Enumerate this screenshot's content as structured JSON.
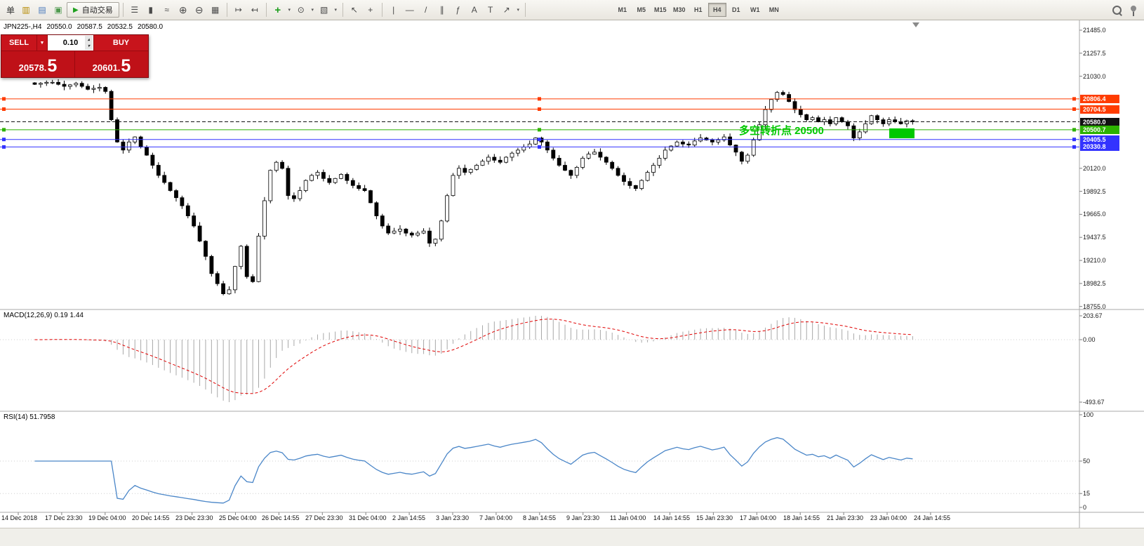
{
  "toolbar": {
    "new_order_label": "单",
    "autotrading_label": "自动交易",
    "timeframes": [
      "M1",
      "M5",
      "M15",
      "M30",
      "H1",
      "H4",
      "D1",
      "W1",
      "MN"
    ],
    "active_timeframe": "H4"
  },
  "icons": {
    "play": "▶",
    "charts": "▥",
    "profiles": "▤",
    "terminal": "▣",
    "bar_chart": "☰",
    "candlestick": "▮",
    "line_chart": "≈",
    "zoom_in": "⊕",
    "zoom_out": "⊖",
    "tile_windows": "▦",
    "auto_scroll": "↦",
    "chart_shift": "↤",
    "indicators_add": "+",
    "periods": "⊙",
    "templates": "▧",
    "cursor": "↖",
    "crosshair": "+",
    "vertical_line": "|",
    "horizontal_line": "—",
    "trendline": "/",
    "channel": "∥",
    "fibonacci": "ƒ",
    "text": "A",
    "text_label": "T",
    "arrows": "↗",
    "dropdown": "▾",
    "spin_up": "▴",
    "spin_down": "▾",
    "sell_dd": "▼"
  },
  "symbol_bar": {
    "symbol": "JPN225-,H4",
    "open": "20550.0",
    "high": "20587.5",
    "low": "20532.5",
    "close": "20580.0"
  },
  "trade_panel": {
    "sell_label": "SELL",
    "buy_label": "BUY",
    "volume": "0.10",
    "sell_price_main": "20578.",
    "sell_price_big": "5",
    "buy_price_main": "20601.",
    "buy_price_big": "5"
  },
  "annotation": {
    "text": "多空转折点 20500"
  },
  "colors": {
    "candle_up": "#ffffff",
    "candle_down": "#000000",
    "candle_outline": "#000000",
    "macd_signal": "#e00000",
    "macd_histogram": "#a8a8a8",
    "rsi_line": "#4a86c8",
    "annotation_green": "#00c800",
    "panel_red": "#bf1118",
    "separator": "#a8a8a8"
  },
  "chart_data": {
    "type": "candlestick",
    "symbol": "JPN225-",
    "timeframe": "H4",
    "window_ohlc": {
      "open": 20550.0,
      "high": 20587.5,
      "low": 20532.5,
      "close": 20580.0
    },
    "y_axis": {
      "ticks": [
        "21485.0",
        "21257.5",
        "21030.0",
        "20120.0",
        "19892.5",
        "19665.0",
        "19437.5",
        "19210.0",
        "18982.5",
        "18755.0"
      ],
      "range": [
        18755.0,
        21485.0
      ]
    },
    "x_axis": {
      "ticks": [
        "14 Dec 2018",
        "17 Dec 23:30",
        "19 Dec 04:00",
        "20 Dec 14:55",
        "23 Dec 23:30",
        "25 Dec 04:00",
        "26 Dec 14:55",
        "27 Dec 23:30",
        "31 Dec 04:00",
        "2 Jan 14:55",
        "3 Jan 23:30",
        "7 Jan 04:00",
        "8 Jan 14:55",
        "9 Jan 23:30",
        "11 Jan 04:00",
        "14 Jan 14:55",
        "15 Jan 23:30",
        "17 Jan 04:00",
        "18 Jan 14:55",
        "21 Jan 23:30",
        "23 Jan 04:00",
        "24 Jan 14:55"
      ]
    },
    "closes": [
      20950,
      20960,
      20970,
      20970,
      20950,
      20930,
      20945,
      20960,
      20930,
      20900,
      20910,
      20920,
      20880,
      20600,
      20380,
      20300,
      20380,
      20430,
      20330,
      20250,
      20150,
      20050,
      19980,
      19900,
      19830,
      19750,
      19650,
      19550,
      19400,
      19250,
      19080,
      18980,
      18880,
      18920,
      19150,
      19350,
      19050,
      19000,
      19450,
      19800,
      20100,
      20180,
      20120,
      19850,
      19820,
      19900,
      20000,
      20050,
      20080,
      20020,
      19980,
      20020,
      20060,
      20000,
      19950,
      19920,
      19900,
      19780,
      19650,
      19550,
      19480,
      19500,
      19520,
      19480,
      19460,
      19480,
      19500,
      19380,
      19420,
      19600,
      19850,
      20050,
      20120,
      20080,
      20110,
      20150,
      20190,
      20230,
      20200,
      20180,
      20230,
      20270,
      20300,
      20330,
      20360,
      20420,
      20380,
      20300,
      20220,
      20150,
      20100,
      20050,
      20130,
      20220,
      20260,
      20280,
      20230,
      20180,
      20120,
      20050,
      19990,
      19950,
      19920,
      20000,
      20080,
      20150,
      20220,
      20300,
      20340,
      20380,
      20360,
      20350,
      20390,
      20420,
      20400,
      20380,
      20400,
      20430,
      20350,
      20280,
      20190,
      20250,
      20400,
      20550,
      20700,
      20800,
      20870,
      20850,
      20780,
      20700,
      20650,
      20600,
      20620,
      20580,
      20600,
      20560,
      20620,
      20580,
      20540,
      20420,
      20480,
      20560,
      20640,
      20600,
      20560,
      20600,
      20580,
      20560,
      20590,
      20580
    ],
    "price_lines": [
      {
        "label": "20806.4",
        "price": 20806.4,
        "color": "#ff3c00",
        "style": "solid",
        "selected": true,
        "is_current": false
      },
      {
        "label": "20704.5",
        "price": 20704.5,
        "color": "#ff3c00",
        "style": "solid",
        "selected": true,
        "is_current": false
      },
      {
        "label": "20580.0",
        "price": 20580.0,
        "color": "#111111",
        "style": "dashed",
        "selected": false,
        "is_current": true
      },
      {
        "label": "20500.7",
        "price": 20500.7,
        "color": "#2db200",
        "style": "solid",
        "selected": true,
        "is_current": false
      },
      {
        "label": "20405.5",
        "price": 20405.5,
        "color": "#3333ff",
        "style": "solid",
        "selected": true,
        "is_current": false
      },
      {
        "label": "20330.8",
        "price": 20330.8,
        "color": "#3333ff",
        "style": "solid",
        "selected": true,
        "is_current": false
      }
    ],
    "macd": {
      "label": "MACD(12,26,9) 0.19 1.44",
      "params": [
        12,
        26,
        9
      ],
      "values": [
        0.19,
        1.44
      ],
      "ticks": [
        "203.67",
        "0.00",
        "-493.67"
      ],
      "axis_range": [
        -493.67,
        203.67
      ]
    },
    "rsi": {
      "label": "RSI(14) 51.7958",
      "params": [
        14
      ],
      "value": 51.7958,
      "ticks": [
        "100",
        "50",
        "15",
        "0"
      ],
      "axis_range": [
        0,
        100
      ]
    }
  }
}
